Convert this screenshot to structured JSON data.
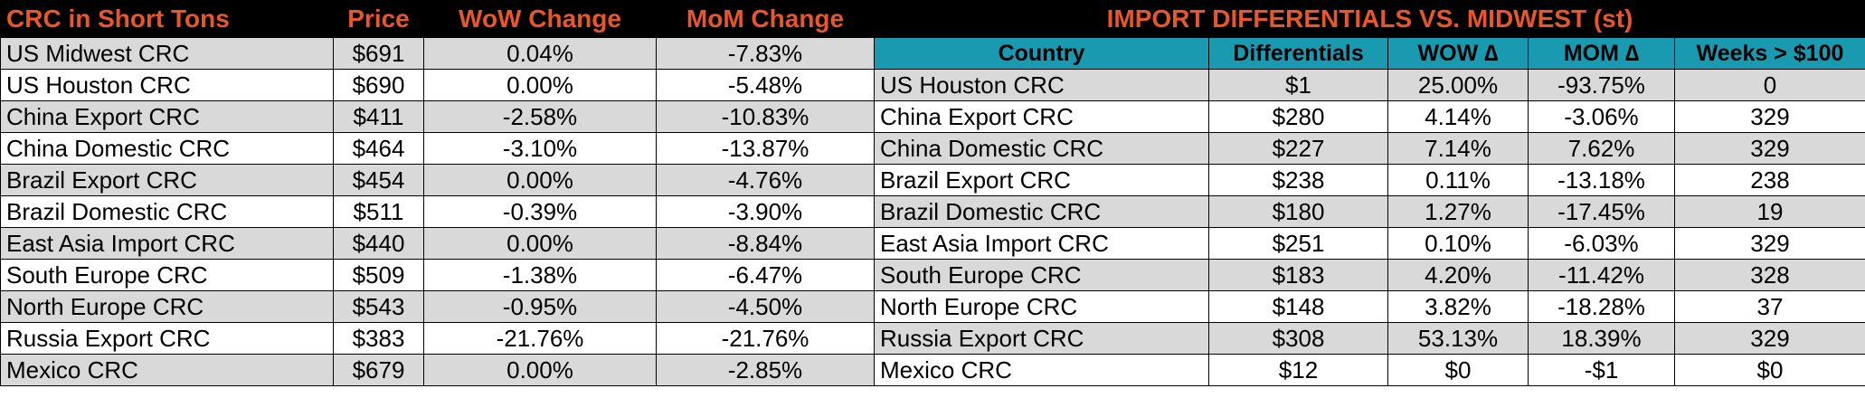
{
  "left_table": {
    "headers": [
      "CRC in Short Tons",
      "Price",
      "WoW Change",
      "MoM Change"
    ],
    "rows": [
      [
        "US Midwest CRC",
        "$691",
        "0.04%",
        "-7.83%"
      ],
      [
        "US Houston CRC",
        "$690",
        "0.00%",
        "-5.48%"
      ],
      [
        "China Export CRC",
        "$411",
        "-2.58%",
        "-10.83%"
      ],
      [
        "China Domestic CRC",
        "$464",
        "-3.10%",
        "-13.87%"
      ],
      [
        "Brazil Export CRC",
        "$454",
        "0.00%",
        "-4.76%"
      ],
      [
        "Brazil Domestic CRC",
        "$511",
        "-0.39%",
        "-3.90%"
      ],
      [
        "East Asia Import CRC",
        "$440",
        "0.00%",
        "-8.84%"
      ],
      [
        "South Europe CRC",
        "$509",
        "-1.38%",
        "-6.47%"
      ],
      [
        "North Europe CRC",
        "$543",
        "-0.95%",
        "-4.50%"
      ],
      [
        "Russia Export CRC",
        "$383",
        "-21.76%",
        "-21.76%"
      ],
      [
        "Mexico CRC",
        "$679",
        "0.00%",
        "-2.85%"
      ]
    ]
  },
  "right_table": {
    "title": "IMPORT DIFFERENTIALS VS. MIDWEST (st)",
    "headers": [
      "Country",
      "Differentials",
      "WOW ∆",
      "MOM ∆",
      "Weeks > $100"
    ],
    "rows": [
      [
        "US Houston CRC",
        "$1",
        "25.00%",
        "-93.75%",
        "0"
      ],
      [
        "China Export CRC",
        "$280",
        "4.14%",
        "-3.06%",
        "329"
      ],
      [
        "China Domestic CRC",
        "$227",
        "7.14%",
        "7.62%",
        "329"
      ],
      [
        "Brazil Export CRC",
        "$238",
        "0.11%",
        "-13.18%",
        "238"
      ],
      [
        "Brazil Domestic CRC",
        "$180",
        "1.27%",
        "-17.45%",
        "19"
      ],
      [
        "East Asia Import CRC",
        "$251",
        "0.10%",
        "-6.03%",
        "329"
      ],
      [
        "South Europe CRC",
        "$183",
        "4.20%",
        "-11.42%",
        "328"
      ],
      [
        "North Europe CRC",
        "$148",
        "3.82%",
        "-18.28%",
        "37"
      ],
      [
        "Russia Export CRC",
        "$308",
        "53.13%",
        "18.39%",
        "329"
      ],
      [
        "Mexico CRC",
        "$12",
        "$0",
        "-$1",
        "$0"
      ]
    ]
  },
  "colors": {
    "header_bg": "#000000",
    "header_text": "#e8562a",
    "subheader_bg": "#1a9ab0",
    "shaded_row": "#d9d9d9"
  }
}
